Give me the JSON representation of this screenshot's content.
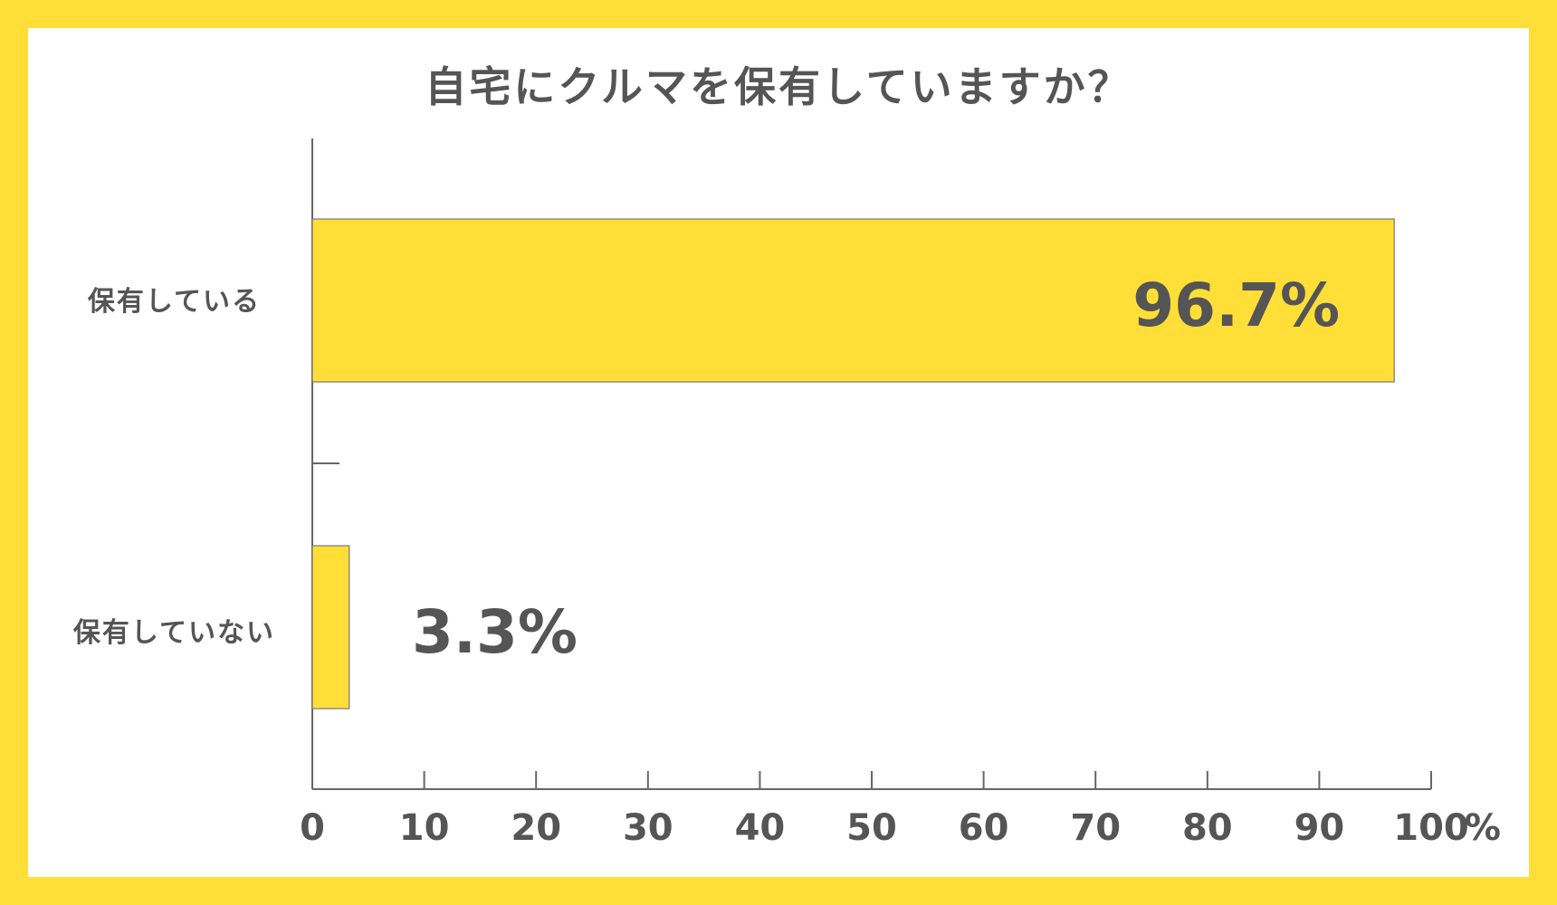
{
  "chart_data": {
    "type": "bar",
    "orientation": "horizontal",
    "title": "自宅にクルマを保有していますか？",
    "categories": [
      "保有している",
      "保有していない"
    ],
    "values": [
      96.7,
      3.3
    ],
    "value_labels": [
      "96.7%",
      "3.3%"
    ],
    "xlim": [
      0,
      100
    ],
    "x_ticks": [
      "0",
      "10",
      "20",
      "30",
      "40",
      "50",
      "60",
      "70",
      "80",
      "90",
      "100"
    ],
    "x_unit": "%",
    "grid": false,
    "legend": "none",
    "bar_color": "#FFDF37",
    "text_color": "#555555"
  },
  "frame_color": "#FFDF37"
}
